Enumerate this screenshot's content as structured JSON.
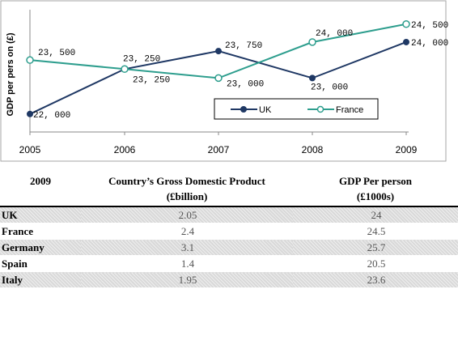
{
  "chart_data": {
    "type": "line",
    "x": [
      "2005",
      "2006",
      "2007",
      "2008",
      "2009"
    ],
    "ylabel": "GDP per pers on (£)",
    "series": [
      {
        "name": "UK",
        "values": [
          22000,
          23250,
          23750,
          23000,
          24000
        ],
        "color": "#1f3864",
        "marker": "filled-circle"
      },
      {
        "name": "France",
        "values": [
          23500,
          23250,
          23000,
          24000,
          24500
        ],
        "color": "#2e9e8e",
        "marker": "open-circle"
      }
    ],
    "data_labels": {
      "UK": [
        "22, 000",
        "23, 250",
        "23, 750",
        "23, 000",
        "24, 000"
      ],
      "France": [
        "23, 500",
        "23, 250",
        "23, 000",
        "24, 000",
        "24, 500"
      ]
    },
    "ylim": [
      21500,
      24900
    ],
    "grid": false,
    "legend_position": "bottom-right"
  },
  "table": {
    "headers": [
      {
        "line1": "2009",
        "line2": ""
      },
      {
        "line1": "Country’s Gross Domestic Product",
        "line2": "(£billion)"
      },
      {
        "line1": "GDP Per person",
        "line2": "(£1000s)"
      }
    ],
    "rows": [
      {
        "country": "UK",
        "gdp": "2.05",
        "per_person": "24"
      },
      {
        "country": "France",
        "gdp": "2.4",
        "per_person": "24.5"
      },
      {
        "country": "Germany",
        "gdp": "3.1",
        "per_person": "25.7"
      },
      {
        "country": "Spain",
        "gdp": "1.4",
        "per_person": "20.5"
      },
      {
        "country": "Italy",
        "gdp": "1.95",
        "per_person": "23.6"
      }
    ]
  }
}
